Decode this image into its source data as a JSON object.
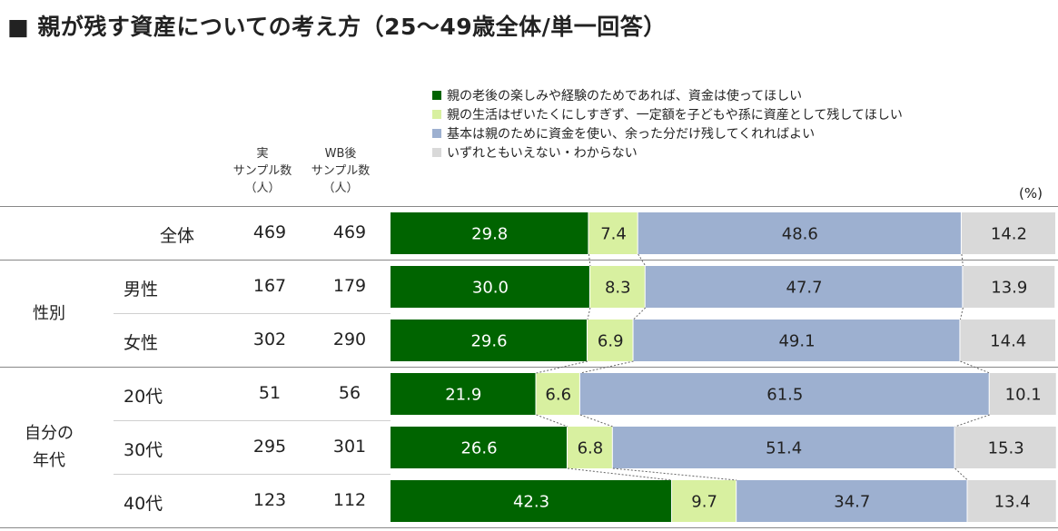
{
  "title": "■ 親が残す資産についての考え方（25〜49歳全体/単一回答）",
  "columns": {
    "actual": [
      "実",
      "サンプル数",
      "（人）"
    ],
    "weighted": [
      "WB後",
      "サンプル数",
      "（人）"
    ]
  },
  "unit": "(%)",
  "groups": [
    {
      "name": "性別",
      "lines": [
        "性別"
      ]
    },
    {
      "name": "自分の年代",
      "lines": [
        "自分の",
        "年代"
      ]
    }
  ],
  "legend": [
    {
      "label": "親の老後の楽しみや経験のためであれば、資金は使ってほしい",
      "color": "#006400"
    },
    {
      "label": "親の生活はぜいたくにしすぎず、一定額を子どもや孫に資産として残してほしい",
      "color": "#d8f0a0"
    },
    {
      "label": "基本は親のために資金を使い、余った分だけ残してくれればよい",
      "color": "#9db0d0"
    },
    {
      "label": "いずれともいえない・わからない",
      "color": "#d9d9d9"
    }
  ],
  "rows": [
    {
      "label": "全体",
      "actual_n": "469",
      "weighted_n": "469"
    },
    {
      "label": "男性",
      "actual_n": "167",
      "weighted_n": "179"
    },
    {
      "label": "女性",
      "actual_n": "302",
      "weighted_n": "290"
    },
    {
      "label": "20代",
      "actual_n": "51",
      "weighted_n": "56"
    },
    {
      "label": "30代",
      "actual_n": "295",
      "weighted_n": "301"
    },
    {
      "label": "40代",
      "actual_n": "123",
      "weighted_n": "112"
    }
  ],
  "chart_data": {
    "type": "bar",
    "orientation": "horizontal",
    "stacked": true,
    "percent_total": 100,
    "categories": [
      "全体",
      "男性",
      "女性",
      "20代",
      "30代",
      "40代"
    ],
    "series": [
      {
        "name": "親の老後の楽しみや経験のためであれば、資金は使ってほしい",
        "values": [
          29.8,
          30.0,
          29.6,
          21.9,
          26.6,
          42.3
        ],
        "label_color": "#ffffff"
      },
      {
        "name": "親の生活はぜいたくにしすぎず、一定額を子どもや孫に資産として残してほしい",
        "values": [
          7.4,
          8.3,
          6.9,
          6.6,
          6.8,
          9.7
        ],
        "label_color": "#222222"
      },
      {
        "name": "基本は親のために資金を使い、余った分だけ残してくれればよい",
        "values": [
          48.6,
          47.7,
          49.1,
          61.5,
          51.4,
          34.7
        ],
        "label_color": "#222222"
      },
      {
        "name": "いずれともいえない・わからない",
        "values": [
          14.2,
          13.9,
          14.4,
          10.1,
          15.3,
          13.4
        ],
        "label_color": "#222222"
      }
    ],
    "legend_position": "top"
  }
}
